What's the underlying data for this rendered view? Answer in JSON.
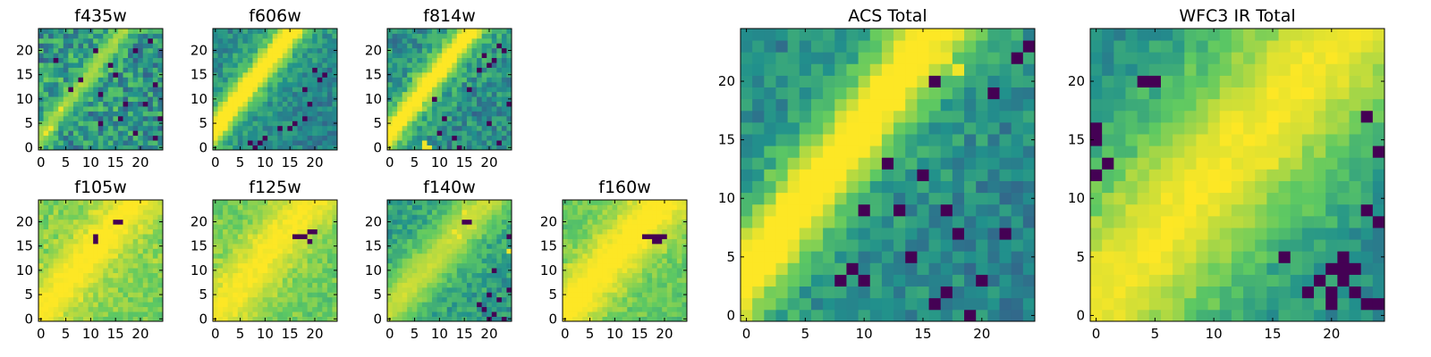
{
  "figure": {
    "colormap": "viridis",
    "colormap_stops": [
      "#440154",
      "#3b528b",
      "#21918c",
      "#5ec962",
      "#fde725"
    ]
  },
  "chart_data": [
    {
      "type": "heatmap",
      "title": "f435w",
      "grid_size": 25,
      "xticks": [
        "0",
        "5",
        "10",
        "15",
        "20"
      ],
      "yticks": [
        "0",
        "5",
        "10",
        "15",
        "20"
      ],
      "xlim": [
        -0.5,
        24.5
      ],
      "ylim": [
        -0.5,
        24.5
      ],
      "feature": {
        "kind": "diagonal-stripe",
        "slope": 1.3,
        "intercept": 2.5,
        "width": 1.4,
        "peak": 0.82,
        "glow": 0.05
      },
      "background": {
        "level": 0.52,
        "noise": 0.22
      },
      "dark_pixels": [
        [
          19,
          20
        ],
        [
          14,
          17
        ],
        [
          12,
          11
        ],
        [
          23,
          13
        ],
        [
          16,
          6
        ],
        [
          8,
          14
        ],
        [
          21,
          9
        ],
        [
          23,
          2
        ],
        [
          12,
          5
        ],
        [
          15,
          15
        ],
        [
          22,
          22
        ],
        [
          19,
          3
        ],
        [
          3,
          18
        ],
        [
          6,
          12
        ],
        [
          17,
          9
        ],
        [
          11,
          20
        ],
        [
          24,
          6
        ]
      ],
      "bright_pixels": [
        [
          1,
          3
        ],
        [
          2,
          4
        ],
        [
          4,
          8
        ]
      ]
    },
    {
      "type": "heatmap",
      "title": "f606w",
      "grid_size": 25,
      "xticks": [
        "0",
        "5",
        "10",
        "15",
        "20"
      ],
      "yticks": [
        "0",
        "5",
        "10",
        "15",
        "20"
      ],
      "xlim": [
        -0.5,
        24.5
      ],
      "ylim": [
        -0.5,
        24.5
      ],
      "feature": {
        "kind": "diagonal-stripe",
        "slope": 1.3,
        "intercept": 4.0,
        "width": 1.8,
        "peak": 0.95,
        "glow": 0.15
      },
      "background": {
        "level": 0.45,
        "noise": 0.12
      },
      "dark_pixels": [
        [
          7,
          1
        ],
        [
          8,
          0
        ],
        [
          9,
          1
        ],
        [
          10,
          2
        ],
        [
          15,
          4
        ],
        [
          16,
          5
        ],
        [
          18,
          6
        ],
        [
          13,
          4
        ],
        [
          19,
          9
        ],
        [
          20,
          16
        ],
        [
          21,
          14
        ],
        [
          22,
          15
        ],
        [
          18,
          12
        ]
      ],
      "bright_pixels": [
        [
          8,
          0
        ]
      ]
    },
    {
      "type": "heatmap",
      "title": "f814w",
      "grid_size": 25,
      "xticks": [
        "0",
        "5",
        "10",
        "15",
        "20"
      ],
      "yticks": [
        "0",
        "5",
        "10",
        "15",
        "20"
      ],
      "xlim": [
        -0.5,
        24.5
      ],
      "ylim": [
        -0.5,
        24.5
      ],
      "feature": {
        "kind": "diagonal-stripe",
        "slope": 1.3,
        "intercept": 3.0,
        "width": 1.8,
        "peak": 0.95,
        "glow": 0.12
      },
      "background": {
        "level": 0.48,
        "noise": 0.16
      },
      "dark_pixels": [
        [
          22,
          21
        ],
        [
          21,
          18
        ],
        [
          20,
          17
        ],
        [
          18,
          16
        ],
        [
          19,
          19
        ],
        [
          24,
          9
        ],
        [
          10,
          3
        ],
        [
          11,
          6
        ],
        [
          20,
          5
        ],
        [
          9,
          10
        ],
        [
          16,
          12
        ],
        [
          22,
          1
        ],
        [
          14,
          0
        ],
        [
          13,
          2
        ],
        [
          23,
          20
        ]
      ],
      "bright_pixels": [
        [
          7,
          0
        ],
        [
          7,
          1
        ],
        [
          8,
          0
        ]
      ]
    },
    {
      "type": "heatmap",
      "title": "f105w",
      "grid_size": 25,
      "xticks": [
        "0",
        "5",
        "10",
        "15",
        "20"
      ],
      "yticks": [
        "0",
        "5",
        "10",
        "15",
        "20"
      ],
      "xlim": [
        -0.5,
        24.5
      ],
      "ylim": [
        -0.5,
        24.5
      ],
      "feature": {
        "kind": "diagonal-stripe",
        "slope": 1.2,
        "intercept": 1.5,
        "width": 3.2,
        "peak": 0.92,
        "glow": 0.1
      },
      "background": {
        "level": 0.75,
        "noise": 0.08
      },
      "dark_pixels": [
        [
          11,
          17
        ],
        [
          11,
          16
        ],
        [
          15,
          20
        ],
        [
          16,
          20
        ]
      ],
      "bright_pixels": [
        [
          14,
          19
        ],
        [
          15,
          13
        ],
        [
          15,
          18
        ]
      ]
    },
    {
      "type": "heatmap",
      "title": "f125w",
      "grid_size": 25,
      "xticks": [
        "0",
        "5",
        "10",
        "15",
        "20"
      ],
      "yticks": [
        "0",
        "5",
        "10",
        "15",
        "20"
      ],
      "xlim": [
        -0.5,
        24.5
      ],
      "ylim": [
        -0.5,
        24.5
      ],
      "feature": {
        "kind": "diagonal-stripe",
        "slope": 1.2,
        "intercept": 1.0,
        "width": 4.0,
        "peak": 0.92,
        "glow": 0.08
      },
      "background": {
        "level": 0.72,
        "noise": 0.08
      },
      "dark_pixels": [
        [
          16,
          17
        ],
        [
          17,
          17
        ],
        [
          18,
          17
        ],
        [
          19,
          18
        ],
        [
          20,
          18
        ],
        [
          19,
          16
        ]
      ],
      "bright_pixels": [
        [
          11,
          19
        ],
        [
          3,
          5
        ],
        [
          4,
          6
        ],
        [
          2,
          2
        ]
      ]
    },
    {
      "type": "heatmap",
      "title": "f140w",
      "grid_size": 25,
      "xticks": [
        "0",
        "5",
        "10",
        "15",
        "20"
      ],
      "yticks": [
        "0",
        "5",
        "10",
        "15",
        "20"
      ],
      "xlim": [
        -0.5,
        24.5
      ],
      "ylim": [
        -0.5,
        24.5
      ],
      "feature": {
        "kind": "diagonal-stripe",
        "slope": 1.15,
        "intercept": 2.0,
        "width": 3.5,
        "peak": 0.82,
        "glow": 0.1
      },
      "background": {
        "level": 0.5,
        "noise": 0.13
      },
      "dark_pixels": [
        [
          15,
          20
        ],
        [
          16,
          20
        ],
        [
          20,
          0
        ],
        [
          21,
          1
        ],
        [
          19,
          2
        ],
        [
          22,
          4
        ],
        [
          24,
          6
        ],
        [
          20,
          5
        ],
        [
          23,
          0
        ],
        [
          18,
          3
        ],
        [
          24,
          17
        ],
        [
          21,
          10
        ]
      ],
      "bright_pixels": [
        [
          15,
          22
        ],
        [
          14,
          17
        ],
        [
          13,
          18
        ],
        [
          24,
          14
        ]
      ]
    },
    {
      "type": "heatmap",
      "title": "f160w",
      "grid_size": 25,
      "xticks": [
        "0",
        "5",
        "10",
        "15",
        "20"
      ],
      "yticks": [
        "0",
        "5",
        "10",
        "15",
        "20"
      ],
      "xlim": [
        -0.5,
        24.5
      ],
      "ylim": [
        -0.5,
        24.5
      ],
      "feature": {
        "kind": "diagonal-stripe",
        "slope": 1.15,
        "intercept": 1.5,
        "width": 4.2,
        "peak": 0.95,
        "glow": 0.08
      },
      "background": {
        "level": 0.7,
        "noise": 0.08
      },
      "dark_pixels": [
        [
          16,
          17
        ],
        [
          17,
          17
        ],
        [
          18,
          17
        ],
        [
          19,
          17
        ],
        [
          20,
          17
        ],
        [
          18,
          16
        ],
        [
          19,
          16
        ]
      ],
      "bright_pixels": [
        [
          4,
          2
        ],
        [
          5,
          3
        ]
      ]
    },
    {
      "type": "heatmap",
      "title": "ACS Total",
      "grid_size": 25,
      "xticks": [
        "0",
        "5",
        "10",
        "15",
        "20"
      ],
      "yticks": [
        "0",
        "5",
        "10",
        "15",
        "20"
      ],
      "xlim": [
        -0.5,
        24.5
      ],
      "ylim": [
        -0.5,
        24.5
      ],
      "feature": {
        "kind": "diagonal-stripe",
        "slope": 1.3,
        "intercept": 3.5,
        "width": 2.2,
        "peak": 0.96,
        "glow": 0.12
      },
      "background": {
        "level": 0.45,
        "noise": 0.12
      },
      "dark_pixels": [
        [
          24,
          23
        ],
        [
          23,
          22
        ],
        [
          21,
          19
        ],
        [
          16,
          20
        ],
        [
          12,
          13
        ],
        [
          10,
          9
        ],
        [
          13,
          9
        ],
        [
          17,
          9
        ],
        [
          9,
          4
        ],
        [
          10,
          3
        ],
        [
          8,
          3
        ],
        [
          16,
          1
        ],
        [
          17,
          2
        ],
        [
          19,
          0
        ],
        [
          20,
          3
        ],
        [
          22,
          7
        ],
        [
          18,
          7
        ],
        [
          14,
          5
        ],
        [
          15,
          12
        ]
      ],
      "bright_pixels": [
        [
          16,
          23
        ],
        [
          17,
          22
        ],
        [
          18,
          21
        ]
      ]
    },
    {
      "type": "heatmap",
      "title": "WFC3 IR Total",
      "grid_size": 25,
      "xticks": [
        "0",
        "5",
        "10",
        "15",
        "20"
      ],
      "yticks": [
        "0",
        "5",
        "10",
        "15",
        "20"
      ],
      "xlim": [
        -0.5,
        24.5
      ],
      "ylim": [
        -0.5,
        24.5
      ],
      "feature": {
        "kind": "diagonal-stripe",
        "slope": 1.1,
        "intercept": 1.0,
        "width": 5.5,
        "peak": 0.92,
        "glow": 0.07
      },
      "background": {
        "level": 0.45,
        "noise": 0.12
      },
      "dark_pixels": [
        [
          4,
          20
        ],
        [
          5,
          20
        ],
        [
          0,
          16
        ],
        [
          0,
          15
        ],
        [
          1,
          13
        ],
        [
          0,
          12
        ],
        [
          23,
          9
        ],
        [
          24,
          14
        ],
        [
          21,
          5
        ],
        [
          20,
          4
        ],
        [
          21,
          4
        ],
        [
          22,
          4
        ],
        [
          21,
          3
        ],
        [
          20,
          2
        ],
        [
          22,
          2
        ],
        [
          23,
          1
        ],
        [
          19,
          3
        ],
        [
          20,
          1
        ],
        [
          24,
          1
        ],
        [
          18,
          2
        ],
        [
          16,
          5
        ],
        [
          23,
          17
        ],
        [
          24,
          8
        ]
      ],
      "bright_pixels": [
        [
          15,
          13
        ],
        [
          14,
          13
        ],
        [
          0,
          0
        ],
        [
          1,
          1
        ],
        [
          0,
          2
        ],
        [
          21,
          22
        ],
        [
          22,
          23
        ]
      ]
    }
  ]
}
